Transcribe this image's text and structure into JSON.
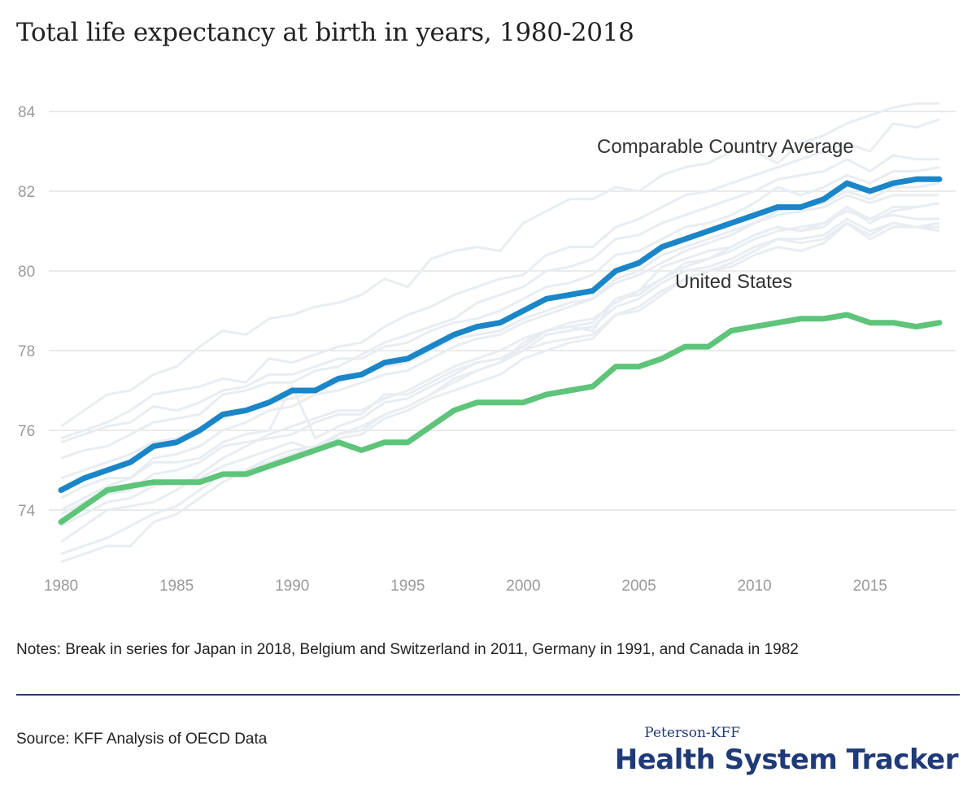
{
  "title": "Total life expectancy at birth in years, 1980-2018",
  "notes": "Notes: Break in series for Japan in 2018, Belgium and Switzerland in 2011, Germany in 1991, and Canada in 1982",
  "source": "Source: KFF Analysis of OECD Data",
  "brand": {
    "small": "Peterson-KFF",
    "big": "Health System Tracker"
  },
  "colors": {
    "us": "#5ec47a",
    "average": "#1a86c8",
    "countries": "#e8edf2",
    "grid": "#e4e4e4"
  },
  "chart_data": {
    "type": "line",
    "x": [
      1980,
      1981,
      1982,
      1983,
      1984,
      1985,
      1986,
      1987,
      1988,
      1989,
      1990,
      1991,
      1992,
      1993,
      1994,
      1995,
      1996,
      1997,
      1998,
      1999,
      2000,
      2001,
      2002,
      2003,
      2004,
      2005,
      2006,
      2007,
      2008,
      2009,
      2010,
      2011,
      2012,
      2013,
      2014,
      2015,
      2016,
      2017,
      2018
    ],
    "xlim": [
      1980,
      2018
    ],
    "ylim": [
      72.5,
      84.3
    ],
    "x_ticks": [
      1980,
      1985,
      1990,
      1995,
      2000,
      2005,
      2010,
      2015
    ],
    "y_ticks": [
      74,
      76,
      78,
      80,
      82,
      84
    ],
    "grid": "horizontal",
    "legend": "none",
    "series": [
      {
        "name": "Comparable Country Average",
        "role": "highlight-average",
        "values": [
          74.5,
          74.8,
          75.0,
          75.2,
          75.6,
          75.7,
          76.0,
          76.4,
          76.5,
          76.7,
          77.0,
          77.0,
          77.3,
          77.4,
          77.7,
          77.8,
          78.1,
          78.4,
          78.6,
          78.7,
          79.0,
          79.3,
          79.4,
          79.5,
          80.0,
          80.2,
          80.6,
          80.8,
          81.0,
          81.2,
          81.4,
          81.6,
          81.6,
          81.8,
          82.2,
          82.0,
          82.2,
          82.3,
          82.3
        ]
      },
      {
        "name": "United States",
        "role": "highlight-us",
        "values": [
          73.7,
          74.1,
          74.5,
          74.6,
          74.7,
          74.7,
          74.7,
          74.9,
          74.9,
          75.1,
          75.3,
          75.5,
          75.7,
          75.5,
          75.7,
          75.7,
          76.1,
          76.5,
          76.7,
          76.7,
          76.7,
          76.9,
          77.0,
          77.1,
          77.6,
          77.6,
          77.8,
          78.1,
          78.1,
          78.5,
          78.6,
          78.7,
          78.8,
          78.8,
          78.9,
          78.7,
          78.7,
          78.6,
          78.7
        ]
      }
    ],
    "background_series": [
      {
        "values": [
          76.1,
          76.5,
          76.9,
          77.0,
          77.4,
          77.6,
          78.1,
          78.5,
          78.4,
          78.8,
          78.9,
          79.1,
          79.2,
          79.4,
          79.8,
          79.6,
          80.3,
          80.5,
          80.6,
          80.5,
          81.2,
          81.5,
          81.8,
          81.8,
          82.1,
          82.0,
          82.4,
          82.6,
          82.7,
          83.0,
          83.0,
          82.7,
          83.2,
          83.4,
          83.7,
          83.9,
          84.1,
          84.2,
          84.2
        ]
      },
      {
        "values": [
          75.8,
          76.0,
          76.2,
          76.5,
          76.9,
          77.0,
          77.1,
          77.3,
          77.2,
          77.8,
          77.7,
          77.9,
          78.1,
          78.2,
          78.6,
          78.9,
          79.1,
          79.4,
          79.6,
          79.8,
          79.9,
          80.4,
          80.6,
          80.6,
          81.1,
          81.3,
          81.6,
          81.9,
          82.0,
          82.2,
          82.4,
          82.6,
          82.8,
          83.0,
          83.2,
          83.0,
          83.7,
          83.6,
          83.8
        ]
      },
      {
        "values": [
          75.3,
          75.5,
          75.6,
          75.9,
          76.2,
          76.3,
          76.4,
          76.9,
          77.0,
          77.2,
          77.2,
          77.5,
          77.6,
          77.9,
          78.2,
          78.4,
          78.6,
          78.8,
          79.2,
          79.4,
          79.6,
          80.0,
          80.1,
          80.3,
          80.8,
          80.9,
          81.2,
          81.4,
          81.6,
          81.8,
          82.0,
          82.3,
          82.4,
          82.5,
          82.8,
          82.5,
          82.9,
          82.8,
          82.8
        ]
      },
      {
        "values": [
          75.7,
          75.9,
          76.1,
          76.2,
          76.6,
          76.5,
          76.7,
          77.0,
          77.1,
          77.4,
          77.4,
          77.6,
          77.8,
          77.8,
          78.1,
          78.2,
          78.5,
          78.7,
          78.8,
          79.0,
          79.3,
          79.6,
          79.7,
          79.9,
          80.4,
          80.5,
          80.8,
          81.1,
          81.2,
          81.4,
          81.7,
          82.1,
          81.9,
          82.1,
          82.4,
          82.2,
          82.5,
          82.5,
          82.6
        ]
      },
      {
        "values": [
          74.8,
          75.0,
          75.2,
          75.4,
          75.7,
          75.8,
          76.0,
          76.3,
          76.5,
          76.7,
          76.8,
          77.0,
          77.2,
          77.4,
          77.6,
          77.7,
          78.0,
          78.3,
          78.4,
          78.5,
          78.8,
          79.0,
          79.2,
          79.3,
          79.8,
          80.0,
          80.4,
          80.6,
          80.8,
          81.0,
          81.2,
          81.5,
          81.6,
          81.7,
          82.0,
          81.8,
          82.1,
          82.1,
          82.2
        ]
      },
      {
        "values": [
          74.3,
          74.6,
          74.8,
          74.8,
          75.3,
          75.4,
          75.6,
          76.0,
          76.2,
          76.5,
          76.6,
          76.9,
          77.0,
          77.2,
          77.4,
          77.5,
          77.8,
          78.1,
          78.3,
          78.4,
          78.7,
          78.9,
          79.1,
          79.3,
          79.7,
          79.9,
          80.2,
          80.5,
          80.7,
          80.9,
          81.2,
          81.4,
          81.5,
          81.6,
          81.9,
          81.7,
          81.9,
          81.9,
          81.9
        ]
      },
      {
        "values": [
          73.9,
          74.2,
          74.4,
          74.5,
          74.9,
          75.0,
          75.2,
          75.6,
          75.7,
          75.8,
          75.9,
          76.2,
          76.4,
          76.4,
          76.9,
          76.9,
          77.2,
          77.5,
          77.7,
          77.8,
          78.1,
          78.5,
          78.6,
          78.5,
          79.3,
          79.4,
          79.8,
          80.2,
          80.3,
          80.6,
          80.9,
          81.1,
          81.0,
          81.2,
          81.6,
          81.2,
          81.5,
          81.6,
          81.7
        ]
      },
      {
        "values": [
          73.6,
          73.9,
          74.2,
          74.3,
          74.6,
          74.7,
          74.8,
          75.1,
          75.3,
          75.5,
          75.7,
          75.5,
          75.9,
          76.1,
          76.4,
          76.6,
          76.9,
          77.3,
          77.5,
          77.7,
          78.2,
          78.5,
          78.6,
          78.7,
          79.3,
          79.5,
          80.1,
          80.3,
          80.5,
          80.6,
          80.9,
          81.1,
          81.0,
          81.1,
          81.6,
          81.3,
          81.6,
          81.6,
          81.7
        ]
      },
      {
        "values": [
          73.2,
          73.6,
          74.0,
          74.1,
          74.2,
          74.5,
          74.9,
          75.3,
          75.6,
          75.9,
          76.1,
          76.3,
          76.5,
          76.5,
          76.8,
          77.0,
          77.3,
          77.6,
          77.8,
          78.0,
          78.3,
          78.5,
          78.7,
          78.8,
          79.2,
          79.5,
          79.8,
          80.1,
          80.3,
          80.5,
          80.8,
          81.0,
          81.1,
          81.2,
          81.5,
          81.3,
          81.4,
          81.3,
          81.3
        ]
      },
      {
        "values": [
          72.9,
          73.1,
          73.3,
          73.6,
          73.9,
          74.1,
          74.5,
          74.9,
          75.0,
          75.2,
          75.4,
          75.6,
          75.8,
          75.9,
          76.3,
          76.5,
          76.8,
          77.0,
          77.2,
          77.4,
          77.8,
          78.0,
          78.2,
          78.3,
          78.9,
          79.0,
          79.4,
          79.8,
          80.0,
          80.1,
          80.4,
          80.6,
          80.5,
          80.7,
          81.2,
          80.8,
          81.1,
          81.1,
          81.0
        ]
      },
      {
        "values": [
          72.7,
          72.9,
          73.1,
          73.1,
          73.7,
          73.9,
          74.3,
          74.7,
          75.0,
          75.3,
          75.5,
          75.6,
          75.9,
          76.0,
          76.4,
          76.6,
          76.9,
          77.2,
          77.5,
          77.7,
          78.0,
          78.2,
          78.3,
          78.4,
          78.9,
          79.1,
          79.5,
          79.8,
          80.0,
          80.2,
          80.5,
          80.8,
          80.7,
          80.8,
          81.2,
          80.9,
          81.2,
          81.1,
          81.2
        ]
      },
      {
        "values": [
          74.0,
          74.3,
          74.6,
          74.8,
          75.2,
          75.2,
          75.3,
          75.7,
          75.9,
          76.0,
          77.1,
          75.8,
          76.1,
          76.3,
          76.7,
          76.8,
          77.1,
          77.4,
          77.7,
          77.8,
          78.0,
          78.4,
          78.5,
          78.6,
          79.1,
          79.3,
          79.7,
          80.0,
          80.1,
          80.3,
          80.6,
          80.8,
          80.8,
          80.9,
          81.3,
          81.0,
          81.2,
          81.1,
          81.1
        ]
      }
    ],
    "annotations": [
      {
        "text": "Comparable Country Average",
        "series": "Comparable Country Average"
      },
      {
        "text": "United States",
        "series": "United States"
      }
    ]
  }
}
